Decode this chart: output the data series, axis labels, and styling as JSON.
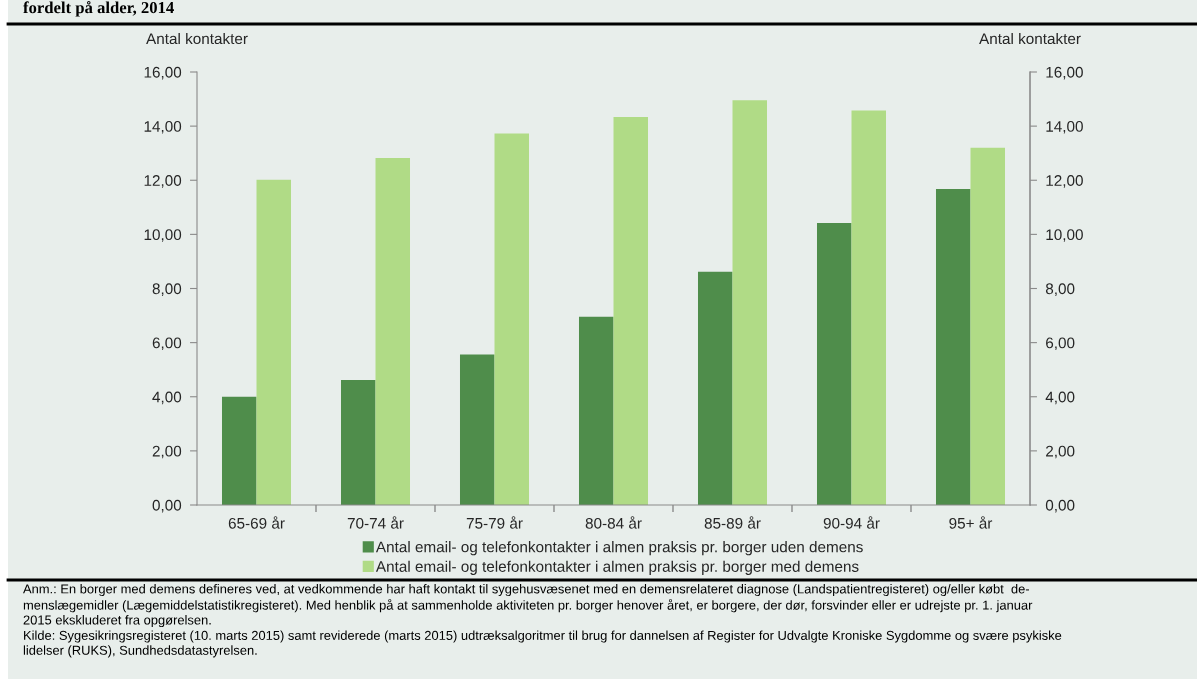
{
  "chart_data": {
    "type": "bar",
    "title": "fordelt på alder, 2014",
    "categories": [
      "65-69 år",
      "70-74 år",
      "75-79 år",
      "80-84 år",
      "85-89 år",
      "90-94 år",
      "95+ år"
    ],
    "series": [
      {
        "name": "Antal email- og telefonkontakter i almen praksis pr. borger uden demens",
        "color": "#4f8d4b",
        "values": [
          4.0,
          4.62,
          5.56,
          6.96,
          8.62,
          10.42,
          11.68
        ]
      },
      {
        "name": "Antal email- og telefonkontakter i almen praksis pr. borger med demens",
        "color": "#b0db86",
        "values": [
          12.02,
          12.82,
          13.73,
          14.34,
          14.96,
          14.58,
          13.2
        ]
      }
    ],
    "ylim": [
      0,
      16
    ],
    "yticks": [
      {
        "value": 0,
        "label": "0,00"
      },
      {
        "value": 2,
        "label": "2,00"
      },
      {
        "value": 4,
        "label": "4,00"
      },
      {
        "value": 6,
        "label": "6,00"
      },
      {
        "value": 8,
        "label": "8,00"
      },
      {
        "value": 10,
        "label": "10,00"
      },
      {
        "value": 12,
        "label": "12,00"
      },
      {
        "value": 14,
        "label": "14,00"
      },
      {
        "value": 16,
        "label": "16,00"
      }
    ],
    "y2lim": [
      0,
      16
    ],
    "y2ticks": [
      {
        "value": 0,
        "label": "0,00"
      },
      {
        "value": 2,
        "label": "2,00"
      },
      {
        "value": 4,
        "label": "4,00"
      },
      {
        "value": 6,
        "label": "6,00"
      },
      {
        "value": 8,
        "label": "8,00"
      },
      {
        "value": 10,
        "label": "10,00"
      },
      {
        "value": 12,
        "label": "12,00"
      },
      {
        "value": 14,
        "label": "14,00"
      },
      {
        "value": 16,
        "label": "16,00"
      }
    ],
    "ylabel": "Antal kontakter",
    "y2label": "Antal kontakter",
    "legend": "bottom",
    "annotations": [
      "Anm.: En borger med demens defineres ved, at vedkommende har haft kontakt til sygehusvæsenet med en demensrelateret diagnose (Landspatientregisteret) og/eller købt  de-\nmenslægemidler (Lægemiddelstatistikregisteret). Med henblik på at sammenholde aktiviteten pr. borger henover året, er borgere, der dør, forsvinder eller er udrejste pr. 1. januar\n2015 ekskluderet fra opgørelsen.",
      "Kilde: Sygesikringsregisteret (10. marts 2015) samt reviderede (marts 2015) udtræksalgoritmer til brug for dannelsen af Register for Udvalgte Kroniske Sygdomme og svære psykiske\nlidelser (RUKS), Sundhedsdatastyrelsen."
    ]
  }
}
